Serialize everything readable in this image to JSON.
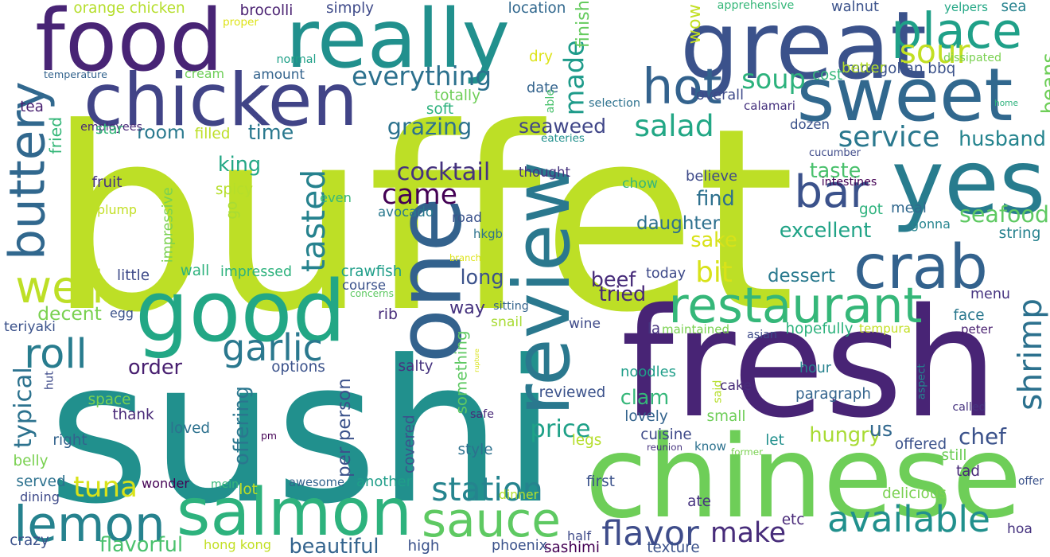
{
  "cloud": {
    "background": "#ffffff",
    "palette": [
      "#440154",
      "#482878",
      "#3e4a89",
      "#31688e",
      "#26828e",
      "#1f9e89",
      "#35b779",
      "#6ece58",
      "#b5de2b",
      "#fde725"
    ],
    "words": [
      {
        "text": "buffet",
        "color": "#bddf26"
      },
      {
        "text": "sushi",
        "color": "#21908d"
      },
      {
        "text": "fresh",
        "color": "#482475"
      },
      {
        "text": "great",
        "color": "#3b528b"
      },
      {
        "text": "chinese",
        "color": "#6ece58"
      },
      {
        "text": "food",
        "color": "#482475"
      },
      {
        "text": "really",
        "color": "#21908d"
      },
      {
        "text": "good",
        "color": "#22a785"
      },
      {
        "text": "salmon",
        "color": "#2db27d"
      },
      {
        "text": "chicken",
        "color": "#414487"
      },
      {
        "text": "sweet",
        "color": "#31688e"
      },
      {
        "text": "yes",
        "color": "#287c8e"
      },
      {
        "text": "one",
        "color": "#33628d"
      },
      {
        "text": "review",
        "color": "#2a788e"
      },
      {
        "text": "crab",
        "color": "#33628d"
      },
      {
        "text": "restaurant",
        "color": "#35b779"
      },
      {
        "text": "place",
        "color": "#1fa088"
      },
      {
        "text": "lemon",
        "color": "#26828e"
      },
      {
        "text": "sauce",
        "color": "#5ec962"
      },
      {
        "text": "buttery",
        "color": "#31688e"
      },
      {
        "text": "well",
        "color": "#bddf26"
      },
      {
        "text": "roll",
        "color": "#287c8e"
      },
      {
        "text": "hot",
        "color": "#33628d"
      },
      {
        "text": "bar",
        "color": "#3b528b"
      },
      {
        "text": "garlic",
        "color": "#2a788e"
      },
      {
        "text": "station",
        "color": "#25848e"
      },
      {
        "text": "available",
        "color": "#21908d"
      },
      {
        "text": "flavor",
        "color": "#3e4c8a"
      },
      {
        "text": "make",
        "color": "#472c7a"
      },
      {
        "text": "came",
        "color": "#440154"
      },
      {
        "text": "tasted",
        "color": "#26828e"
      },
      {
        "text": "shrimp",
        "color": "#2c718e"
      },
      {
        "text": "service",
        "color": "#2a788e"
      },
      {
        "text": "soup",
        "color": "#2db27d"
      },
      {
        "text": "salad",
        "color": "#22a785"
      },
      {
        "text": "sour",
        "color": "#c2df23"
      },
      {
        "text": "made",
        "color": "#1e9b8a"
      },
      {
        "text": "tuna",
        "color": "#d8e219"
      },
      {
        "text": "bit",
        "color": "#d8e219"
      },
      {
        "text": "everything",
        "color": "#2c718e"
      },
      {
        "text": "cocktail",
        "color": "#46337f"
      },
      {
        "text": "seaweed",
        "color": "#404688"
      },
      {
        "text": "grazing",
        "color": "#2c728e"
      },
      {
        "text": "price",
        "color": "#1fa188"
      },
      {
        "text": "excellent",
        "color": "#20a386"
      },
      {
        "text": "seafood",
        "color": "#5ec962"
      },
      {
        "text": "husband",
        "color": "#25848e"
      },
      {
        "text": "taste",
        "color": "#4ac16d"
      },
      {
        "text": "daughter",
        "color": "#2d708e"
      },
      {
        "text": "find",
        "color": "#2d708e"
      },
      {
        "text": "sake",
        "color": "#d8e219"
      },
      {
        "text": "dessert",
        "color": "#29798e"
      },
      {
        "text": "menu",
        "color": "#463480"
      },
      {
        "text": "offering",
        "color": "#2a768e"
      },
      {
        "text": "per person",
        "color": "#3b528b"
      },
      {
        "text": "something",
        "color": "#5ec962"
      },
      {
        "text": "typical",
        "color": "#2c728e"
      },
      {
        "text": "hungry",
        "color": "#a8db34"
      },
      {
        "text": "chef",
        "color": "#3b528b"
      },
      {
        "text": "beautiful",
        "color": "#33638d"
      },
      {
        "text": "flavorful",
        "color": "#4ac16d"
      },
      {
        "text": "rib",
        "color": "#472c7a"
      },
      {
        "text": "way",
        "color": "#46337f"
      },
      {
        "text": "long",
        "color": "#3b528b"
      },
      {
        "text": "clam",
        "color": "#35b779"
      },
      {
        "text": "beef",
        "color": "#472c7a"
      },
      {
        "text": "tried",
        "color": "#482878"
      },
      {
        "text": "order",
        "color": "#481f70"
      },
      {
        "text": "decent",
        "color": "#7ad151"
      },
      {
        "text": "king",
        "color": "#22a785"
      },
      {
        "text": "time",
        "color": "#2a788e"
      },
      {
        "text": "room",
        "color": "#29798e"
      },
      {
        "text": "beans",
        "color": "#6ece58"
      },
      {
        "text": "us",
        "color": "#31688e"
      },
      {
        "text": "mongolian bbq",
        "color": "#3b528b"
      },
      {
        "text": "orange chicken",
        "color": "#b5de2b"
      },
      {
        "text": "brocolli",
        "color": "#481f70"
      },
      {
        "text": "simply",
        "color": "#3e4a89"
      },
      {
        "text": "location",
        "color": "#31688e"
      },
      {
        "text": "finish",
        "color": "#65cb5e"
      },
      {
        "text": "walnut",
        "color": "#3b528b"
      },
      {
        "text": "yelpers",
        "color": "#22a785"
      },
      {
        "text": "sea",
        "color": "#26828e"
      },
      {
        "text": "wow",
        "color": "#c2df23"
      },
      {
        "text": "apprehensive",
        "color": "#35b779"
      },
      {
        "text": "proper",
        "color": "#dde318"
      },
      {
        "text": "normal",
        "color": "#1fa088"
      },
      {
        "text": "temperature",
        "color": "#33638d"
      },
      {
        "text": "cream",
        "color": "#6ece58"
      },
      {
        "text": "amount",
        "color": "#33638d"
      },
      {
        "text": "dry",
        "color": "#dde318"
      },
      {
        "text": "better",
        "color": "#b5de2b"
      },
      {
        "text": "dissipated",
        "color": "#7ad151"
      },
      {
        "text": "cost",
        "color": "#35b779"
      },
      {
        "text": "tea",
        "color": "#481f70"
      },
      {
        "text": "totally",
        "color": "#6ece58"
      },
      {
        "text": "soft",
        "color": "#2db27d"
      },
      {
        "text": "date",
        "color": "#33638d"
      },
      {
        "text": "selection",
        "color": "#2c718e"
      },
      {
        "text": "overall",
        "color": "#3e4a89"
      },
      {
        "text": "calamari",
        "color": "#46327e"
      },
      {
        "text": "home",
        "color": "#2db27d"
      },
      {
        "text": "fried",
        "color": "#35b779"
      },
      {
        "text": "employees",
        "color": "#482878"
      },
      {
        "text": "star",
        "color": "#35b779"
      },
      {
        "text": "filled",
        "color": "#bddf26"
      },
      {
        "text": "eateries",
        "color": "#21908d"
      },
      {
        "text": "dozen",
        "color": "#3b528b"
      },
      {
        "text": "cucumber",
        "color": "#3e4a89"
      },
      {
        "text": "able",
        "color": "#4ac16d"
      },
      {
        "text": "thought",
        "color": "#46337f"
      },
      {
        "text": "fruit",
        "color": "#46337f"
      },
      {
        "text": "chow",
        "color": "#35b779"
      },
      {
        "text": "believe",
        "color": "#3e4a89"
      },
      {
        "text": "intestines",
        "color": "#440154"
      },
      {
        "text": "spicy",
        "color": "#b5de2b"
      },
      {
        "text": "even",
        "color": "#35b779"
      },
      {
        "text": "impressive",
        "color": "#7ad151"
      },
      {
        "text": "plump",
        "color": "#c2df23"
      },
      {
        "text": "go",
        "color": "#a8db34"
      },
      {
        "text": "avocado",
        "color": "#29798e"
      },
      {
        "text": "got",
        "color": "#2db27d"
      },
      {
        "text": "meal",
        "color": "#31688e"
      },
      {
        "text": "road",
        "color": "#3b528b"
      },
      {
        "text": "hkgb",
        "color": "#2c718e"
      },
      {
        "text": "gonna",
        "color": "#25848e"
      },
      {
        "text": "string",
        "color": "#26828e"
      },
      {
        "text": "branch",
        "color": "#dde318"
      },
      {
        "text": "wall",
        "color": "#2db27d"
      },
      {
        "text": "impressed",
        "color": "#2db27d"
      },
      {
        "text": "crawfish",
        "color": "#1f9e89"
      },
      {
        "text": "little",
        "color": "#3e4a89"
      },
      {
        "text": "course",
        "color": "#3b528b"
      },
      {
        "text": "concerns",
        "color": "#5ec962"
      },
      {
        "text": "today",
        "color": "#3e4a89"
      },
      {
        "text": "egg",
        "color": "#3b528b"
      },
      {
        "text": "sitting",
        "color": "#33638d"
      },
      {
        "text": "teriyaki",
        "color": "#3b528b"
      },
      {
        "text": "snail",
        "color": "#a8db34"
      },
      {
        "text": "wine",
        "color": "#3e4a89"
      },
      {
        "text": "la",
        "color": "#46337f"
      },
      {
        "text": "maintained",
        "color": "#7ad151"
      },
      {
        "text": "asian",
        "color": "#3e4a89"
      },
      {
        "text": "hopefully",
        "color": "#2db27d"
      },
      {
        "text": "tempura",
        "color": "#c2df23"
      },
      {
        "text": "face",
        "color": "#2a788e"
      },
      {
        "text": "peter",
        "color": "#481f70"
      },
      {
        "text": "rupture",
        "color": "#d8e219"
      },
      {
        "text": "options",
        "color": "#3b528b"
      },
      {
        "text": "salty",
        "color": "#46337f"
      },
      {
        "text": "hut",
        "color": "#3e4a89"
      },
      {
        "text": "noodles",
        "color": "#1f9e89"
      },
      {
        "text": "said",
        "color": "#b5de2b"
      },
      {
        "text": "hour",
        "color": "#26828e"
      },
      {
        "text": "cake",
        "color": "#472c7a"
      },
      {
        "text": "aspect",
        "color": "#26828e"
      },
      {
        "text": "paragraph",
        "color": "#33638d"
      },
      {
        "text": "space",
        "color": "#7ad151"
      },
      {
        "text": "reviewed",
        "color": "#3b528b"
      },
      {
        "text": "called",
        "color": "#46337f"
      },
      {
        "text": "thank",
        "color": "#482878"
      },
      {
        "text": "lovely",
        "color": "#33638d"
      },
      {
        "text": "small",
        "color": "#6ece58"
      },
      {
        "text": "safe",
        "color": "#482878"
      },
      {
        "text": "loved",
        "color": "#2c718e"
      },
      {
        "text": "right",
        "color": "#33638d"
      },
      {
        "text": "pm",
        "color": "#440154"
      },
      {
        "text": "cuisine",
        "color": "#3e4a89"
      },
      {
        "text": "let",
        "color": "#21908d"
      },
      {
        "text": "covered",
        "color": "#3b528b"
      },
      {
        "text": "know",
        "color": "#2c718e"
      },
      {
        "text": "reunion",
        "color": "#46337f"
      },
      {
        "text": "former",
        "color": "#7ad151"
      },
      {
        "text": "still",
        "color": "#6ece58"
      },
      {
        "text": "offered",
        "color": "#3b528b"
      },
      {
        "text": "belly",
        "color": "#7ad151"
      },
      {
        "text": "style",
        "color": "#2c718e"
      },
      {
        "text": "legs",
        "color": "#b5de2b"
      },
      {
        "text": "served",
        "color": "#2c718e"
      },
      {
        "text": "wonder",
        "color": "#440154"
      },
      {
        "text": "mein",
        "color": "#35b779"
      },
      {
        "text": "awesome",
        "color": "#33638d"
      },
      {
        "text": "another",
        "color": "#1f9e89"
      },
      {
        "text": "first",
        "color": "#3b528b"
      },
      {
        "text": "ate",
        "color": "#46337f"
      },
      {
        "text": "tad",
        "color": "#482878"
      },
      {
        "text": "lot",
        "color": "#c2df23"
      },
      {
        "text": "dinner",
        "color": "#b5de2b"
      },
      {
        "text": "dining",
        "color": "#3e4a89"
      },
      {
        "text": "delicious",
        "color": "#7ad151"
      },
      {
        "text": "offer",
        "color": "#3b528b"
      },
      {
        "text": "crazy",
        "color": "#3b528b"
      },
      {
        "text": "half",
        "color": "#3e4a89"
      },
      {
        "text": "etc",
        "color": "#482878"
      },
      {
        "text": "hoa",
        "color": "#46337f"
      },
      {
        "text": "hong kong",
        "color": "#c2df23"
      },
      {
        "text": "high",
        "color": "#3b528b"
      },
      {
        "text": "phoenix",
        "color": "#3b528b"
      },
      {
        "text": "sashimi",
        "color": "#440154"
      },
      {
        "text": "texture",
        "color": "#3b528b"
      }
    ]
  }
}
